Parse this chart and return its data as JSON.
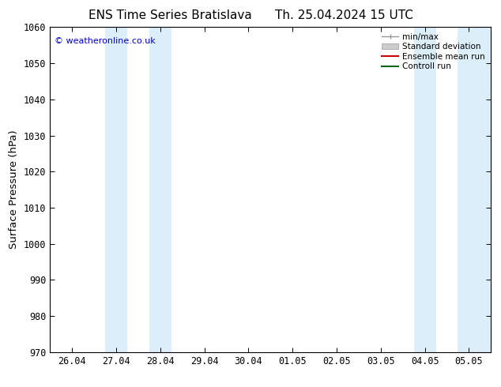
{
  "title": "ENS Time Series Bratislava",
  "title2": "Th. 25.04.2024 15 UTC",
  "ylabel": "Surface Pressure (hPa)",
  "ylim": [
    970,
    1060
  ],
  "yticks": [
    970,
    980,
    990,
    1000,
    1010,
    1020,
    1030,
    1040,
    1050,
    1060
  ],
  "xtick_labels": [
    "26.04",
    "27.04",
    "28.04",
    "29.04",
    "30.04",
    "01.05",
    "02.05",
    "03.05",
    "04.05",
    "05.05"
  ],
  "xtick_positions": [
    0,
    1,
    2,
    3,
    4,
    5,
    6,
    7,
    8,
    9
  ],
  "xlim": [
    -0.5,
    9.5
  ],
  "copyright": "© weatheronline.co.uk",
  "copyright_color": "#0000cc",
  "bg_color": "#ffffff",
  "plot_bg_color": "#ffffff",
  "shaded_bands": [
    {
      "x_start": 0.75,
      "x_end": 1.25,
      "color": "#dceefa"
    },
    {
      "x_start": 1.75,
      "x_end": 2.25,
      "color": "#dceefa"
    },
    {
      "x_start": 7.75,
      "x_end": 8.25,
      "color": "#dceefa"
    },
    {
      "x_start": 8.75,
      "x_end": 9.5,
      "color": "#dceefa"
    }
  ],
  "legend_items": [
    {
      "label": "min/max",
      "style": "minmax"
    },
    {
      "label": "Standard deviation",
      "style": "stddev"
    },
    {
      "label": "Ensemble mean run",
      "color": "#cc0000",
      "style": "line"
    },
    {
      "label": "Controll run",
      "color": "#006600",
      "style": "line"
    }
  ],
  "title_fontsize": 11,
  "tick_fontsize": 8.5,
  "ylabel_fontsize": 9.5,
  "legend_fontsize": 7.5
}
